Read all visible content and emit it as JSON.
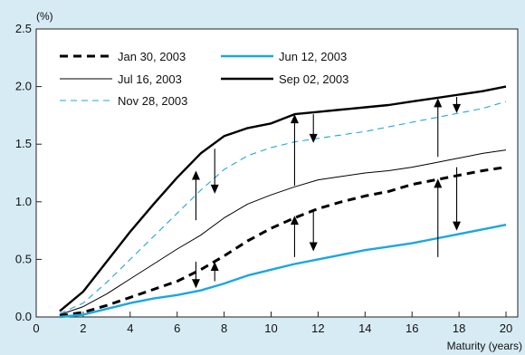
{
  "chart_data": {
    "type": "line",
    "y_unit": "(%)",
    "xlabel": "Maturity (years)",
    "xlim": [
      0,
      20.5
    ],
    "ylim": [
      0,
      2.5
    ],
    "x_ticks": [
      0,
      2,
      4,
      6,
      8,
      10,
      12,
      14,
      16,
      18,
      20
    ],
    "y_ticks": [
      "0.0",
      "0.5",
      "1.0",
      "1.5",
      "2.0",
      "2.5"
    ],
    "grid": false,
    "legend_position": "top-left",
    "x": [
      1,
      2,
      3,
      4,
      5,
      6,
      7,
      8,
      9,
      10,
      11,
      12,
      13,
      14,
      15,
      16,
      17,
      18,
      19,
      20
    ],
    "series": [
      {
        "name": "Jan 30, 2003",
        "color": "#000000",
        "style": "dashed-bold",
        "values": [
          0.01,
          0.04,
          0.1,
          0.17,
          0.24,
          0.31,
          0.41,
          0.53,
          0.66,
          0.77,
          0.86,
          0.94,
          1.0,
          1.05,
          1.09,
          1.15,
          1.19,
          1.23,
          1.27,
          1.3
        ]
      },
      {
        "name": "Jun 12, 2003",
        "color": "#1aa7e0",
        "style": "solid-bold",
        "values": [
          0.0,
          0.02,
          0.07,
          0.12,
          0.16,
          0.19,
          0.23,
          0.29,
          0.36,
          0.41,
          0.46,
          0.5,
          0.54,
          0.58,
          0.61,
          0.64,
          0.68,
          0.72,
          0.76,
          0.8
        ]
      },
      {
        "name": "Jul 16, 2003",
        "color": "#000000",
        "style": "solid-thin",
        "values": [
          0.02,
          0.09,
          0.2,
          0.33,
          0.46,
          0.59,
          0.71,
          0.86,
          0.98,
          1.06,
          1.13,
          1.19,
          1.22,
          1.25,
          1.27,
          1.3,
          1.34,
          1.38,
          1.42,
          1.45
        ]
      },
      {
        "name": "Sep 02, 2003",
        "color": "#000000",
        "style": "solid-bold",
        "values": [
          0.05,
          0.22,
          0.48,
          0.74,
          0.98,
          1.21,
          1.42,
          1.57,
          1.64,
          1.68,
          1.76,
          1.78,
          1.8,
          1.82,
          1.84,
          1.87,
          1.9,
          1.93,
          1.96,
          2.0
        ]
      },
      {
        "name": "Nov 28, 2003",
        "color": "#1aa7e0",
        "style": "dashed-thin",
        "values": [
          0.03,
          0.12,
          0.3,
          0.5,
          0.7,
          0.9,
          1.1,
          1.28,
          1.4,
          1.47,
          1.52,
          1.55,
          1.58,
          1.61,
          1.65,
          1.69,
          1.73,
          1.77,
          1.81,
          1.87
        ]
      }
    ],
    "arrows": [
      {
        "x": 6.8,
        "from": 0.48,
        "to": 0.25
      },
      {
        "x": 6.8,
        "from": 0.84,
        "to": 1.27
      },
      {
        "x": 7.6,
        "from": 1.46,
        "to": 1.07
      },
      {
        "x": 7.6,
        "from": 0.31,
        "to": 0.48
      },
      {
        "x": 11.0,
        "from": 0.52,
        "to": 0.88
      },
      {
        "x": 11.0,
        "from": 1.14,
        "to": 1.76
      },
      {
        "x": 11.8,
        "from": 1.76,
        "to": 1.51
      },
      {
        "x": 11.8,
        "from": 0.92,
        "to": 0.57
      },
      {
        "x": 17.1,
        "from": 0.52,
        "to": 1.2
      },
      {
        "x": 17.1,
        "from": 1.39,
        "to": 1.9
      },
      {
        "x": 17.9,
        "from": 1.91,
        "to": 1.77
      },
      {
        "x": 17.9,
        "from": 1.3,
        "to": 0.75
      }
    ]
  }
}
